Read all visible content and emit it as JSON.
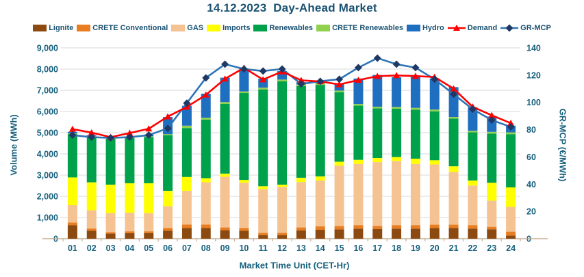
{
  "chart": {
    "title": "14.12.2023  Day-Ahead Market"
  },
  "chart_data": {
    "type": "bar",
    "subtype": "stacked-bar-with-lines",
    "title": "14.12.2023  Day-Ahead Market",
    "categories": [
      "01",
      "02",
      "03",
      "04",
      "05",
      "06",
      "07",
      "08",
      "09",
      "10",
      "11",
      "12",
      "13",
      "14",
      "15",
      "16",
      "17",
      "18",
      "19",
      "20",
      "21",
      "22",
      "23",
      "24"
    ],
    "bar_series": [
      {
        "name": "Lignite",
        "color": "#8C4A10",
        "values": [
          640,
          370,
          240,
          260,
          260,
          370,
          500,
          500,
          400,
          370,
          170,
          170,
          390,
          420,
          440,
          475,
          455,
          475,
          475,
          500,
          500,
          475,
          445,
          150
        ]
      },
      {
        "name": "CRETE Conventional",
        "color": "#E87D22",
        "values": [
          120,
          110,
          70,
          90,
          90,
          130,
          170,
          170,
          130,
          130,
          110,
          110,
          140,
          160,
          160,
          165,
          150,
          165,
          165,
          160,
          160,
          165,
          115,
          185
        ]
      },
      {
        "name": "GAS",
        "color": "#F5C392",
        "values": [
          820,
          860,
          900,
          880,
          860,
          1035,
          1590,
          1990,
          2390,
          2140,
          2055,
          2165,
          2140,
          2165,
          2850,
          2885,
          3005,
          3025,
          2885,
          2840,
          2495,
          1870,
          1235,
          1165
        ]
      },
      {
        "name": "Imports",
        "color": "#FFFF00",
        "values": [
          1310,
          1320,
          1340,
          1385,
          1405,
          725,
          650,
          195,
          150,
          130,
          140,
          105,
          205,
          195,
          180,
          195,
          195,
          185,
          250,
          200,
          260,
          235,
          845,
          920
        ]
      },
      {
        "name": "Renewables",
        "color": "#00A14B",
        "values": [
          2040,
          2140,
          2165,
          2130,
          2185,
          2625,
          2310,
          2765,
          3285,
          4100,
          4565,
          4875,
          4325,
          4315,
          3280,
          2560,
          2345,
          2280,
          2305,
          2305,
          2250,
          2270,
          2320,
          2510
        ]
      },
      {
        "name": "CRETE Renewables",
        "color": "#92D050",
        "values": [
          40,
          40,
          30,
          30,
          30,
          45,
          110,
          90,
          90,
          75,
          85,
          80,
          75,
          75,
          75,
          75,
          75,
          85,
          90,
          85,
          75,
          75,
          80,
          85
        ]
      },
      {
        "name": "Hydro",
        "color": "#1F6FC0",
        "values": [
          70,
          45,
          35,
          45,
          80,
          810,
          940,
          1130,
          1150,
          1080,
          420,
          400,
          110,
          140,
          305,
          1200,
          1495,
          1400,
          1500,
          1470,
          1410,
          1110,
          720,
          315
        ]
      }
    ],
    "line_series": [
      {
        "name": "Demand",
        "axis": "left",
        "color": "#FF0000",
        "marker": "triangle",
        "marker_color": "#FF0000",
        "values": [
          5170,
          5005,
          4790,
          4985,
          5185,
          5760,
          6215,
          6785,
          7540,
          8055,
          7505,
          7880,
          7470,
          7415,
          7275,
          7480,
          7665,
          7700,
          7670,
          7625,
          7075,
          6220,
          5820,
          5450
        ]
      },
      {
        "name": "GR-MCP",
        "axis": "right",
        "color": "#2E75B6",
        "marker": "diamond",
        "marker_color": "#1F3864",
        "values": [
          76,
          74.5,
          74,
          74.5,
          76,
          81,
          99.5,
          118,
          128,
          124.5,
          123,
          124.5,
          113.5,
          115.5,
          117,
          125.5,
          132.5,
          128,
          125.5,
          117,
          106,
          95,
          87,
          82
        ]
      }
    ],
    "left_axis": {
      "label": "Volume (MWh)",
      "min": 0,
      "max": 9000,
      "tick_step": 1000,
      "tick_labels": [
        "9,000",
        "8,000",
        "7,000",
        "6,000",
        "5,000",
        "4,000",
        "3,000",
        "2,000",
        "1,000",
        "0"
      ],
      "tick_values": [
        9000,
        8000,
        7000,
        6000,
        5000,
        4000,
        3000,
        2000,
        1000,
        0
      ]
    },
    "right_axis": {
      "label": "GR-MCP (€/MWh)",
      "min": 0,
      "max": 140,
      "tick_step": 20,
      "tick_labels": [
        "140",
        "120",
        "100",
        "80",
        "60",
        "40",
        "20",
        "0"
      ],
      "tick_values": [
        140,
        120,
        100,
        80,
        60,
        40,
        20,
        0
      ]
    },
    "x_axis": {
      "label": "Market Time Unit (CET-Hr)"
    },
    "grid": true,
    "legend_position": "top",
    "style": {
      "text_color": "#17607D",
      "title_color": "#1A5272",
      "grid_color": "#D9D9D9",
      "baseline_color": "#C4AE94"
    }
  }
}
